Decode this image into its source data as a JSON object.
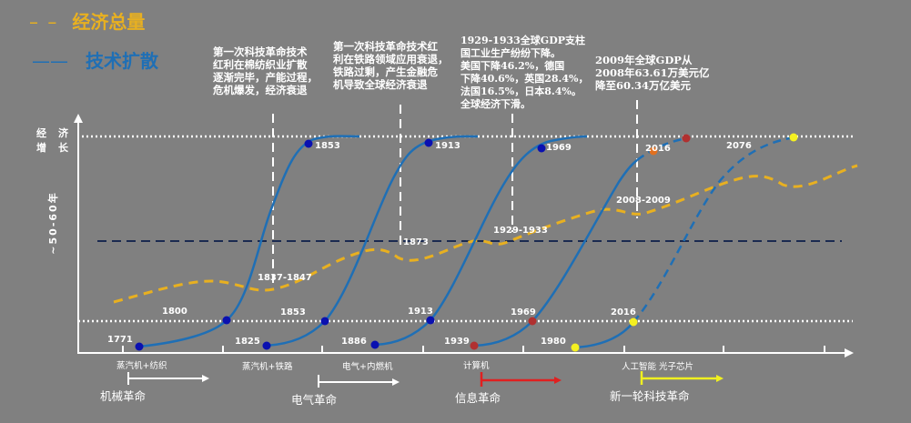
{
  "legend": {
    "economy": {
      "label": "经济总量",
      "color": "#e8b020"
    },
    "tech": {
      "label": "技术扩散",
      "color": "#1f6fb5"
    }
  },
  "y_axis": {
    "label": "经济增长",
    "period": "~50-60年"
  },
  "notes": [
    "第一次科技革命技术\n红利在棉纺织业扩散\n逐渐完毕，产能过程，\n危机爆发，经济衰退",
    "第一次科技革命技术红\n利在铁路领域应用衰退，\n铁路过剩，产生金融危\n机导致全球经济衰退",
    "1929-1933全球GDP支柱\n国工业生产纷纷下降。\n美国下降46.2%，德国\n下降40.6%，英国28.4%，\n法国16.5%，日本8.4%。\n全球经济下滑。",
    "2009年全球GDP从\n2008年63.61万美元亿\n降至60.34万亿美元"
  ],
  "crisis_labels": [
    "1837-1847",
    "1873",
    "1929-1933",
    "2008-2009"
  ],
  "year_labels": {
    "w1": [
      "1771",
      "1800",
      "1853"
    ],
    "w2": [
      "1825",
      "1853",
      "1913"
    ],
    "w3": [
      "1886",
      "1913",
      "1969"
    ],
    "w4": [
      "1939",
      "1969",
      "2016"
    ],
    "w5": [
      "1980",
      "2016",
      "2076"
    ]
  },
  "categories": [
    "蒸汽机+纺织",
    "蒸汽机+铁路",
    "电气+内燃机",
    "计算机",
    "人工智能 光子芯片"
  ],
  "revolutions": [
    {
      "label": "机械革命",
      "color": "#ffffff"
    },
    {
      "label": "电气革命",
      "color": "#ffffff"
    },
    {
      "label": "信息革命",
      "color": "#e02020"
    },
    {
      "label": "新一轮科技革命",
      "color": "#f0f020"
    }
  ],
  "colors": {
    "background": "#808080",
    "dot_blue": "#0a10b0",
    "dot_red": "#b03030",
    "dot_yellow": "#f5f020",
    "dot_orange": "#e07020",
    "mid_line": "#1a2a50"
  }
}
